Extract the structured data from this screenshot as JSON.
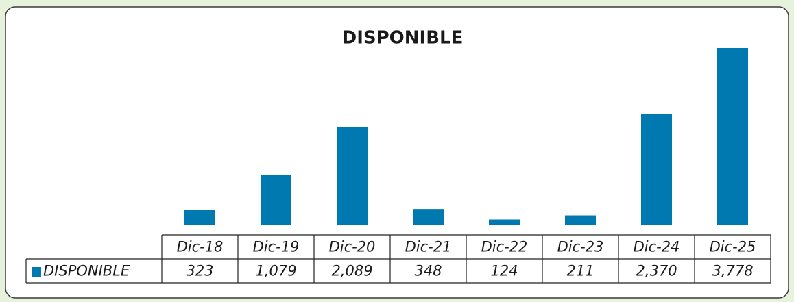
{
  "chart_data": {
    "type": "bar",
    "title": "DISPONIBLE",
    "categories": [
      "Dic-18",
      "Dic-19",
      "Dic-20",
      "Dic-21",
      "Dic-22",
      "Dic-23",
      "Dic-24",
      "Dic-25"
    ],
    "series": [
      {
        "name": "DISPONIBLE",
        "color": "#0079b0",
        "values": [
          323,
          1079,
          2089,
          348,
          124,
          211,
          2370,
          3778
        ],
        "value_labels": [
          "323",
          "1,079",
          "2,089",
          "348",
          "124",
          "211",
          "2,370",
          "3,778"
        ]
      }
    ]
  }
}
